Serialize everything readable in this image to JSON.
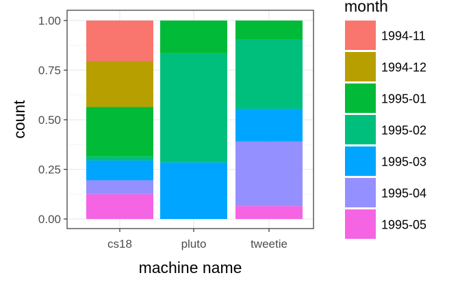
{
  "chart_data": {
    "type": "bar",
    "stacked": true,
    "normalized": true,
    "xlabel": "machine name",
    "ylabel": "count",
    "categories": [
      "cs18",
      "pluto",
      "tweetie"
    ],
    "ylim": [
      0,
      1
    ],
    "yticks": [
      "0.00",
      "0.25",
      "0.50",
      "0.75",
      "1.00"
    ],
    "grid": true,
    "legend": {
      "title": "month",
      "placement": "right"
    },
    "series": [
      {
        "name": "1994-11",
        "color": "#F8766D",
        "values": [
          0.205,
          0.0,
          0.0
        ]
      },
      {
        "name": "1994-12",
        "color": "#B79F00",
        "values": [
          0.23,
          0.0,
          0.0
        ]
      },
      {
        "name": "1995-01",
        "color": "#00BA38",
        "values": [
          0.25,
          0.165,
          0.095
        ]
      },
      {
        "name": "1995-02",
        "color": "#00BF7D",
        "values": [
          0.02,
          0.55,
          0.35
        ]
      },
      {
        "name": "1995-03",
        "color": "#00A5FF",
        "values": [
          0.1,
          0.285,
          0.165
        ]
      },
      {
        "name": "1995-04",
        "color": "#9590FF",
        "values": [
          0.07,
          0.0,
          0.325
        ]
      },
      {
        "name": "1995-05",
        "color": "#F564E3",
        "values": [
          0.125,
          0.0,
          0.065
        ]
      }
    ]
  }
}
